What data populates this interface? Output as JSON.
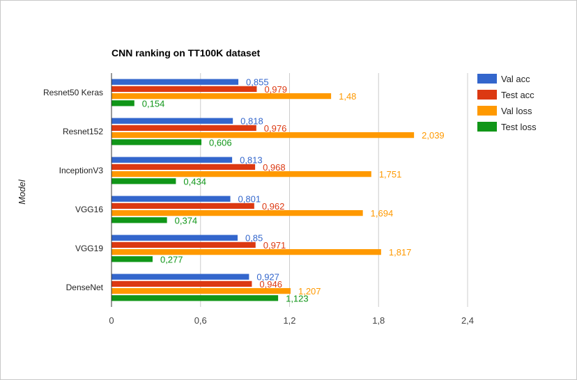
{
  "chart_data": {
    "type": "bar",
    "orientation": "horizontal",
    "title": "CNN ranking on TT100K dataset",
    "xlabel": "",
    "ylabel": "Model",
    "xlim": [
      0,
      2.4
    ],
    "xticks": [
      0,
      0.6,
      1.2,
      1.8,
      2.4
    ],
    "xtick_labels": [
      "0",
      "0,6",
      "1,2",
      "1,8",
      "2,4"
    ],
    "grid": true,
    "legend_position": "right",
    "categories": [
      "Resnet50 Keras",
      "Resnet152",
      "InceptionV3",
      "VGG16",
      "VGG19",
      "DenseNet"
    ],
    "series": [
      {
        "name": "Val acc",
        "color": "#3366cc",
        "values": [
          0.855,
          0.818,
          0.813,
          0.801,
          0.85,
          0.927
        ],
        "labels": [
          "0,855",
          "0,818",
          "0,813",
          "0,801",
          "0,85",
          "0,927"
        ]
      },
      {
        "name": "Test acc",
        "color": "#dc3912",
        "values": [
          0.979,
          0.976,
          0.968,
          0.962,
          0.971,
          0.946
        ],
        "labels": [
          "0,979",
          "0,976",
          "0,968",
          "0,962",
          "0,971",
          "0,946"
        ]
      },
      {
        "name": "Val loss",
        "color": "#ff9900",
        "values": [
          1.48,
          2.039,
          1.751,
          1.694,
          1.817,
          1.207
        ],
        "labels": [
          "1,48",
          "2,039",
          "1,751",
          "1,694",
          "1,817",
          "1,207"
        ]
      },
      {
        "name": "Test loss",
        "color": "#109618",
        "values": [
          0.154,
          0.606,
          0.434,
          0.374,
          0.277,
          1.123
        ],
        "labels": [
          "0,154",
          "0,606",
          "0,434",
          "0,374",
          "0,277",
          "1,123"
        ]
      }
    ]
  }
}
